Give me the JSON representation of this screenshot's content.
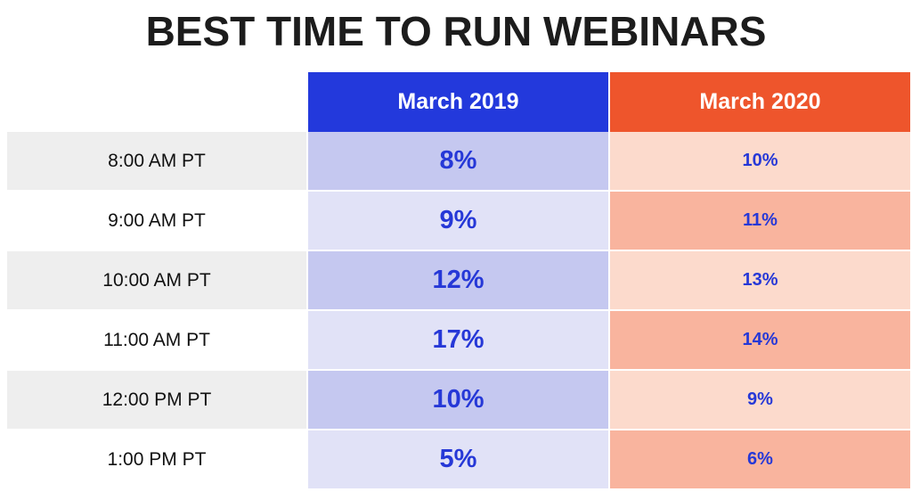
{
  "title": "BEST TIME TO RUN WEBINARS",
  "table": {
    "columns": [
      "March 2019",
      "March 2020"
    ],
    "rows": [
      {
        "time": "8:00 AM PT",
        "march_2019": "8%",
        "march_2020": "10%"
      },
      {
        "time": "9:00 AM PT",
        "march_2019": "9%",
        "march_2020": "11%"
      },
      {
        "time": "10:00 AM PT",
        "march_2019": "12%",
        "march_2020": "13%"
      },
      {
        "time": "11:00 AM PT",
        "march_2019": "17%",
        "march_2020": "14%"
      },
      {
        "time": "12:00 PM PT",
        "march_2019": "10%",
        "march_2020": "9%"
      },
      {
        "time": "1:00 PM PT",
        "march_2019": "5%",
        "march_2020": "6%"
      }
    ]
  },
  "colors": {
    "title_text": "#1C1C1C",
    "header_2019": "#2339DC",
    "header_2020": "#EE552C",
    "cell_2019_odd": "#C5C8F0",
    "cell_2019_even": "#E1E2F7",
    "cell_2020_odd": "#FCDACC",
    "cell_2020_even": "#F9B49E",
    "time_cell_odd": "#EEEEEE",
    "time_cell_even": "#FFFFFF",
    "value_text": "#2638D7"
  },
  "chart_data": {
    "type": "table",
    "title": "BEST TIME TO RUN WEBINARS",
    "categories": [
      "8:00 AM PT",
      "9:00 AM PT",
      "10:00 AM PT",
      "11:00 AM PT",
      "12:00 PM PT",
      "1:00 PM PT"
    ],
    "series": [
      {
        "name": "March 2019",
        "unit": "%",
        "values": [
          8,
          9,
          12,
          17,
          10,
          5
        ]
      },
      {
        "name": "March 2020",
        "unit": "%",
        "values": [
          10,
          11,
          13,
          14,
          9,
          6
        ]
      }
    ],
    "layout": {
      "row_label_column": "time of day (PT)",
      "value_format": "percent",
      "grid": false,
      "legend_position": "column-headers"
    }
  }
}
